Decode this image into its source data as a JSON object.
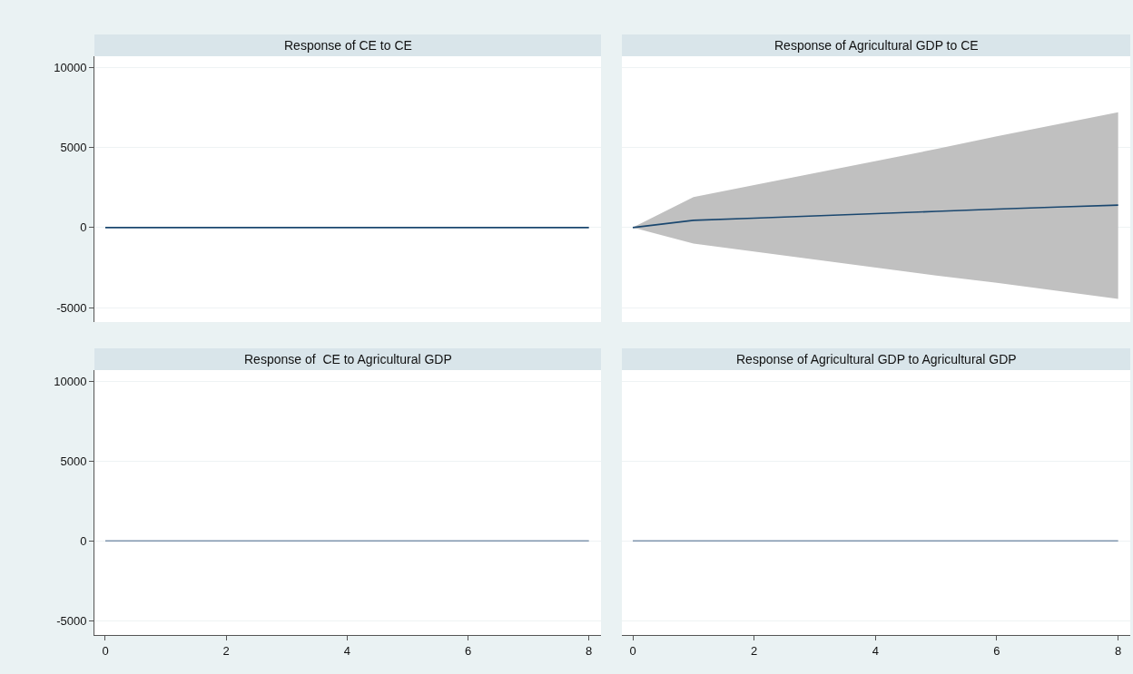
{
  "chart_data": [
    {
      "type": "line",
      "title": "Response of CE to CE",
      "x": [
        0,
        1,
        2,
        3,
        4,
        5,
        6,
        7,
        8
      ],
      "series": [
        {
          "color": "#1a476f",
          "values": [
            0,
            0,
            0,
            0,
            0,
            0,
            0,
            0,
            0
          ]
        }
      ],
      "xlim": [
        -0.18,
        8.2
      ],
      "xticks": [
        0,
        2,
        4,
        6,
        8
      ],
      "ylim": [
        -5900,
        10700
      ],
      "yticks": [
        -5000,
        0,
        5000,
        10000
      ],
      "grid": "y",
      "tick_labels": "y"
    },
    {
      "type": "line",
      "title": "Response of Agricultural GDP to CE",
      "x": [
        0,
        1,
        2,
        3,
        4,
        5,
        6,
        7,
        8
      ],
      "series": [
        {
          "color": "#1a476f",
          "values": [
            0,
            450,
            590,
            730,
            870,
            1010,
            1150,
            1280,
            1400
          ],
          "lower": [
            0,
            -1000,
            -1500,
            -2000,
            -2500,
            -3000,
            -3450,
            -3950,
            -4450
          ],
          "upper": [
            0,
            1900,
            2650,
            3400,
            4150,
            4900,
            5700,
            6450,
            7200
          ]
        }
      ],
      "xlim": [
        -0.18,
        8.2
      ],
      "xticks": [
        0,
        2,
        4,
        6,
        8
      ],
      "ylim": [
        -5900,
        10700
      ],
      "yticks": [
        -5000,
        0,
        5000,
        10000
      ],
      "grid": "y",
      "tick_labels": false
    },
    {
      "type": "line",
      "title": "Response of  CE to Agricultural GDP",
      "x": [
        0,
        1,
        2,
        3,
        4,
        5,
        6,
        7,
        8
      ],
      "series": [
        {
          "color": "#7f95ad",
          "values": [
            0,
            0,
            0,
            0,
            0,
            0,
            0,
            0,
            0
          ]
        }
      ],
      "xlim": [
        -0.18,
        8.2
      ],
      "xticks": [
        0,
        2,
        4,
        6,
        8
      ],
      "ylim": [
        -5900,
        10700
      ],
      "yticks": [
        -5000,
        0,
        5000,
        10000
      ],
      "grid": "y"
    },
    {
      "type": "line",
      "title": "Response of Agricultural GDP to Agricultural GDP",
      "x": [
        0,
        1,
        2,
        3,
        4,
        5,
        6,
        7,
        8
      ],
      "series": [
        {
          "color": "#7f95ad",
          "values": [
            0,
            0,
            0,
            0,
            0,
            0,
            0,
            0,
            0
          ]
        }
      ],
      "xlim": [
        -0.18,
        8.2
      ],
      "xticks": [
        0,
        2,
        4,
        6,
        8
      ],
      "ylim": [
        -5900,
        10700
      ],
      "yticks": [
        -5000,
        0,
        5000,
        10000
      ],
      "grid": "y",
      "tick_labels": "x"
    }
  ]
}
